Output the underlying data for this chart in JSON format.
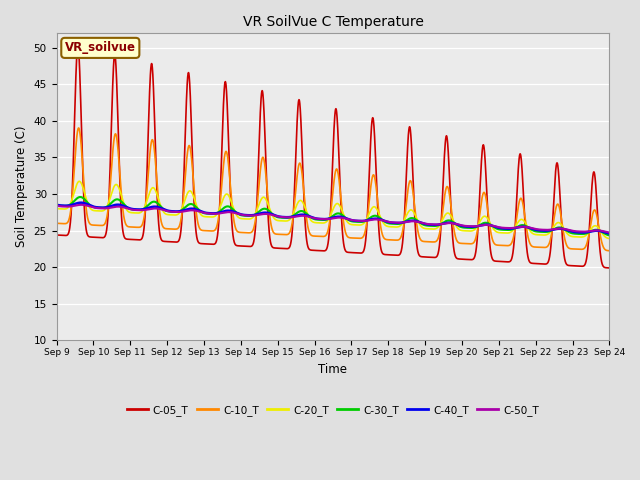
{
  "title": "VR SoilVue C Temperature",
  "xlabel": "Time",
  "ylabel": "Soil Temperature (C)",
  "ylim": [
    10,
    52
  ],
  "yticks": [
    10,
    15,
    20,
    25,
    30,
    35,
    40,
    45,
    50
  ],
  "background_color": "#e0e0e0",
  "plot_bg_color": "#ebebeb",
  "legend_label": "VR_soilvue",
  "series_colors": {
    "C-05_T": "#cc0000",
    "C-10_T": "#ff8800",
    "C-20_T": "#eeee00",
    "C-30_T": "#00cc00",
    "C-40_T": "#0000ee",
    "C-50_T": "#aa00aa"
  },
  "xtick_labels": [
    "Sep 9",
    "Sep 10",
    "Sep 11",
    "Sep 12",
    "Sep 13",
    "Sep 14",
    "Sep 15",
    "Sep 16",
    "Sep 17",
    "Sep 18",
    "Sep 19",
    "Sep 20",
    "Sep 21",
    "Sep 22",
    "Sep 23",
    "Sep 24"
  ],
  "figsize": [
    6.4,
    4.8
  ],
  "dpi": 100
}
